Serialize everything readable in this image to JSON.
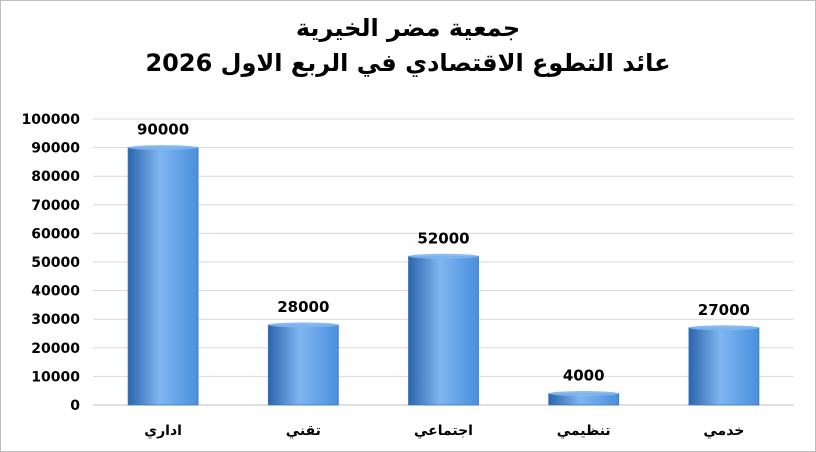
{
  "chart_data": {
    "type": "bar",
    "title": "جمعية مضر الخيرية",
    "subtitle": "عائد التطوع الاقتصادي  في الربع الاول 2026",
    "categories": [
      "اداري",
      "تقني",
      "اجتماعي",
      "تنظيمي",
      "خدمي"
    ],
    "values": [
      90000,
      28000,
      52000,
      4000,
      27000
    ],
    "data_labels": [
      "90000",
      "28000",
      "52000",
      "4000",
      "27000"
    ],
    "ylim": [
      0,
      100000
    ],
    "yticks": [
      0,
      10000,
      20000,
      30000,
      40000,
      50000,
      60000,
      70000,
      80000,
      90000,
      100000
    ],
    "grid": true,
    "legend": "none",
    "bar_color": "#4a8fdc",
    "bar_highlight": "#7fb6f0",
    "bar_shadow": "#2c64ad",
    "xlabel": "",
    "ylabel": ""
  }
}
